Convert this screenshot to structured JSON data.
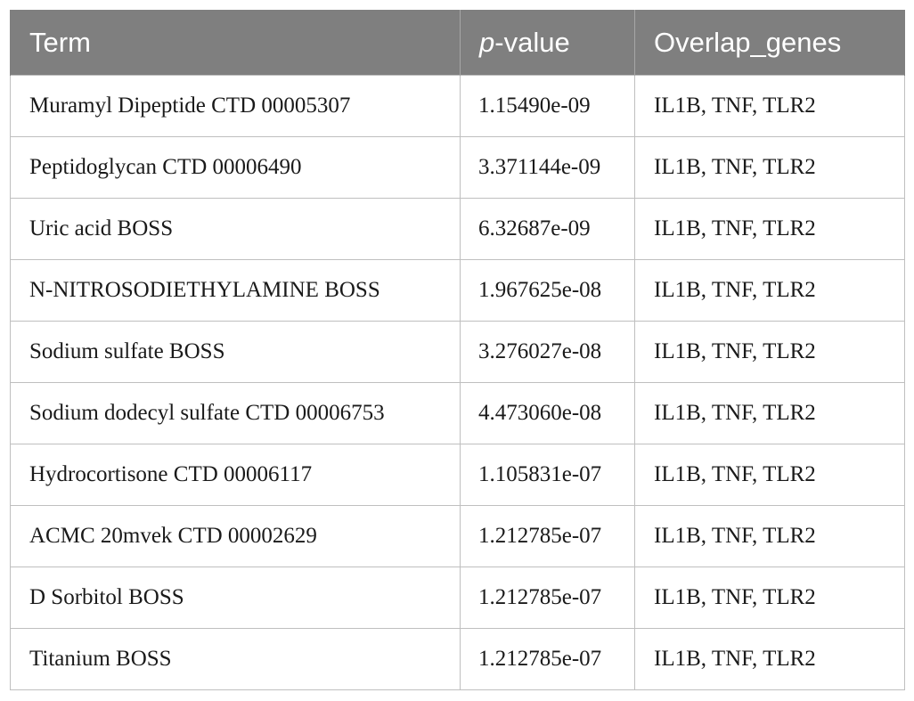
{
  "table": {
    "headers": {
      "term": "Term",
      "pvalue_prefix": "p",
      "pvalue_suffix": "-value",
      "genes": "Overlap_genes"
    },
    "rows": [
      {
        "term": "Muramyl Dipeptide CTD 00005307",
        "pvalue": "1.15490e-09",
        "genes": "IL1B, TNF, TLR2"
      },
      {
        "term": "Peptidoglycan CTD 00006490",
        "pvalue": "3.371144e-09",
        "genes": "IL1B, TNF, TLR2"
      },
      {
        "term": "Uric acid BOSS",
        "pvalue": "6.32687e-09",
        "genes": "IL1B, TNF, TLR2"
      },
      {
        "term": "N-NITROSODIETHYLAMINE BOSS",
        "pvalue": "1.967625e-08",
        "genes": "IL1B, TNF, TLR2"
      },
      {
        "term": "Sodium sulfate BOSS",
        "pvalue": "3.276027e-08",
        "genes": "IL1B, TNF, TLR2"
      },
      {
        "term": "Sodium dodecyl sulfate CTD 00006753",
        "pvalue": "4.473060e-08",
        "genes": "IL1B, TNF, TLR2"
      },
      {
        "term": "Hydrocortisone CTD 00006117",
        "pvalue": "1.105831e-07",
        "genes": "IL1B, TNF, TLR2"
      },
      {
        "term": "ACMC 20mvek CTD 00002629",
        "pvalue": "1.212785e-07",
        "genes": "IL1B, TNF, TLR2"
      },
      {
        "term": "D Sorbitol BOSS",
        "pvalue": "1.212785e-07",
        "genes": "IL1B, TNF, TLR2"
      },
      {
        "term": "Titanium BOSS",
        "pvalue": "1.212785e-07",
        "genes": "IL1B, TNF, TLR2"
      }
    ]
  }
}
